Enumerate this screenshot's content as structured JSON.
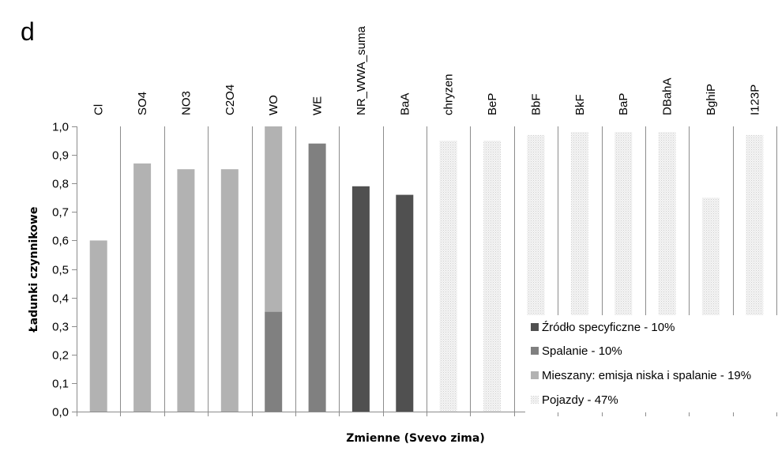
{
  "panel_label": "d",
  "chart_data": {
    "type": "bar",
    "stacked": true,
    "xlabel": "Zmienne (Svevo zima)",
    "ylabel": "Ładunki czynnikowe",
    "ylim": [
      0,
      1.0
    ],
    "ytick_step": 0.1,
    "ytick_labels": [
      "0,0",
      "0,1",
      "0,2",
      "0,3",
      "0,4",
      "0,5",
      "0,6",
      "0,7",
      "0,8",
      "0,9",
      "1,0"
    ],
    "grid": "vertical",
    "legend_position": "bottom-right",
    "categories": [
      "Cl",
      "SO4",
      "NO3",
      "C2O4",
      "WO",
      "WE",
      "NR_WWA_suma",
      "BaA",
      "chryzen",
      "BeP",
      "BbF",
      "BkF",
      "BaP",
      "DBahA",
      "BghiP",
      "I123P"
    ],
    "series": [
      {
        "name": "Źródło specyficzne - 10%",
        "color": "#505050",
        "pattern": "solid",
        "values": [
          0,
          0,
          0,
          0,
          0,
          0,
          0.79,
          0.76,
          0,
          0,
          0,
          0,
          0,
          0,
          0,
          0
        ]
      },
      {
        "name": "Spalanie - 10%",
        "color": "#808080",
        "pattern": "solid",
        "values": [
          0,
          0,
          0,
          0,
          0.35,
          0.94,
          0,
          0,
          0,
          0,
          0,
          0,
          0,
          0,
          0,
          0
        ]
      },
      {
        "name": "Mieszany: emisja niska i spalanie - 19%",
        "color": "#b2b2b2",
        "pattern": "solid",
        "values": [
          0.6,
          0.87,
          0.85,
          0.85,
          0.65,
          0,
          0,
          0,
          0,
          0,
          0,
          0,
          0,
          0,
          0,
          0
        ]
      },
      {
        "name": "Pojazdy - 47%",
        "color": "#ececec",
        "pattern": "dotted",
        "values": [
          0,
          0,
          0,
          0,
          0,
          0,
          0,
          0,
          0.95,
          0.95,
          0.97,
          0.98,
          0.98,
          0.98,
          0.75,
          0.97
        ]
      }
    ]
  }
}
